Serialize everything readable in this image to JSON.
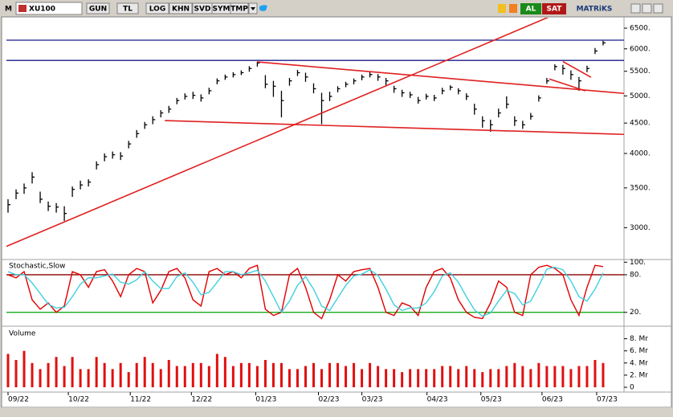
{
  "toolbar": {
    "mode": "M",
    "symbol": "XU100",
    "buttons": [
      "GUN",
      "TL",
      "LOG",
      "KHN",
      "SVD",
      "SYM",
      "TMP"
    ],
    "buy": "AL",
    "sell": "SAT",
    "brand": "MATRiKS"
  },
  "chart_data": [
    {
      "type": "ohlc",
      "log": true,
      "grid": false,
      "color": "#000000",
      "xlim": [
        -0.2,
        76.6
      ],
      "ylim": [
        2660,
        6770
      ],
      "yticks": [
        {
          "value": 6500,
          "label": "6500."
        },
        {
          "value": 6000,
          "label": "6000."
        },
        {
          "value": 5500,
          "label": "5500."
        },
        {
          "value": 5000,
          "label": "5000."
        },
        {
          "value": 4500,
          "label": "4500."
        },
        {
          "value": 4000,
          "label": "4000."
        },
        {
          "value": 3500,
          "label": "3500."
        },
        {
          "value": 3000,
          "label": "3000."
        }
      ],
      "high": [
        3350,
        3480,
        3560,
        3720,
        3450,
        3320,
        3300,
        3260,
        3520,
        3600,
        3620,
        3880,
        4000,
        4030,
        4020,
        4200,
        4380,
        4520,
        4620,
        4730,
        4810,
        4960,
        5050,
        5080,
        5030,
        5160,
        5350,
        5430,
        5480,
        5520,
        5610,
        5710,
        5420,
        5300,
        5100,
        5360,
        5530,
        5470,
        5250,
        5060,
        5080,
        5190,
        5280,
        5350,
        5430,
        5480,
        5440,
        5360,
        5200,
        5120,
        5080,
        4980,
        5040,
        5020,
        5160,
        5210,
        5150,
        5050,
        4850,
        4620,
        4560,
        4760,
        4990,
        4620,
        4540,
        4680,
        5010,
        5360,
        5650,
        5640,
        5520,
        5380,
        5620,
        6020,
        6190
      ],
      "low": [
        3180,
        3350,
        3420,
        3560,
        3300,
        3200,
        3180,
        3080,
        3380,
        3480,
        3520,
        3760,
        3880,
        3920,
        3900,
        4080,
        4250,
        4400,
        4480,
        4600,
        4680,
        4840,
        4930,
        4940,
        4890,
        5030,
        5230,
        5320,
        5370,
        5420,
        5490,
        5600,
        5150,
        4980,
        4600,
        5200,
        5400,
        5280,
        5050,
        4480,
        4900,
        5070,
        5170,
        5230,
        5310,
        5370,
        5300,
        5210,
        5060,
        4980,
        4960,
        4850,
        4930,
        4900,
        5030,
        5110,
        5030,
        4920,
        4650,
        4420,
        4350,
        4600,
        4760,
        4450,
        4400,
        4560,
        4890,
        5240,
        5520,
        5430,
        5320,
        5100,
        5480,
        5880,
        6080
      ],
      "close": [
        3280,
        3430,
        3500,
        3650,
        3350,
        3260,
        3250,
        3170,
        3480,
        3540,
        3580,
        3830,
        3950,
        3980,
        3960,
        4150,
        4320,
        4470,
        4560,
        4680,
        4750,
        4910,
        4990,
        5010,
        4960,
        5100,
        5300,
        5380,
        5430,
        5470,
        5560,
        5680,
        5230,
        5190,
        4910,
        5300,
        5470,
        5380,
        5140,
        4910,
        4990,
        5140,
        5230,
        5300,
        5380,
        5430,
        5380,
        5300,
        5140,
        5060,
        5020,
        4910,
        4990,
        4960,
        5100,
        5170,
        5100,
        4990,
        4750,
        4540,
        4470,
        4680,
        4840,
        4540,
        4470,
        4620,
        4960,
        5300,
        5600,
        5560,
        5430,
        5300,
        5560,
        5950,
        6140
      ],
      "trendlines": [
        {
          "x": [
            -0.2,
            68
          ],
          "y": [
            2790,
            6855
          ],
          "color": "#e02020"
        },
        {
          "x": [
            31,
            76.6
          ],
          "y": [
            5703,
            5048
          ],
          "color": "#e02020"
        },
        {
          "x": [
            19.5,
            76.6
          ],
          "y": [
            4543,
            4307
          ],
          "color": "#e02020"
        },
        {
          "x": [
            69,
            72.5
          ],
          "y": [
            5713,
            5373
          ],
          "color": "#e02020"
        },
        {
          "x": [
            67.3,
            71.8
          ],
          "y": [
            5339,
            5098
          ],
          "color": "#e02020"
        }
      ],
      "levels": [
        {
          "value": 6205,
          "color": "#1a1a8c"
        },
        {
          "value": 5737,
          "color": "#1a1a8c"
        }
      ]
    },
    {
      "type": "line",
      "title": "Stochastic,Slow",
      "xlim": [
        -0.2,
        76.6
      ],
      "ylim": [
        3,
        103
      ],
      "yticks": [
        {
          "value": 100,
          "label": "100."
        },
        {
          "value": 80,
          "label": "80."
        },
        {
          "value": 20,
          "label": "20."
        }
      ],
      "levels": [
        {
          "value": 80,
          "color": "#8b0000"
        },
        {
          "value": 20,
          "color": "#00a000"
        }
      ],
      "series": [
        {
          "color": "#e00000",
          "values": [
            80,
            75,
            85,
            40,
            25,
            35,
            20,
            30,
            85,
            80,
            60,
            85,
            88,
            70,
            45,
            80,
            90,
            85,
            35,
            55,
            85,
            90,
            75,
            40,
            30,
            85,
            90,
            80,
            85,
            75,
            90,
            95,
            25,
            15,
            20,
            80,
            90,
            60,
            20,
            10,
            40,
            80,
            70,
            85,
            88,
            90,
            60,
            20,
            15,
            35,
            30,
            15,
            60,
            85,
            90,
            75,
            40,
            20,
            12,
            10,
            35,
            70,
            60,
            20,
            15,
            80,
            92,
            95,
            90,
            80,
            40,
            15,
            60,
            95,
            93
          ]
        },
        {
          "color": "#40d0e0",
          "values": [
            85,
            80,
            80,
            67,
            50,
            33,
            27,
            28,
            45,
            65,
            75,
            75,
            78,
            81,
            68,
            65,
            72,
            85,
            70,
            58,
            58,
            77,
            83,
            68,
            48,
            52,
            68,
            85,
            85,
            80,
            83,
            87,
            70,
            45,
            20,
            38,
            63,
            77,
            57,
            30,
            23,
            43,
            63,
            78,
            81,
            88,
            79,
            57,
            32,
            23,
            27,
            27,
            35,
            53,
            78,
            83,
            68,
            45,
            24,
            14,
            19,
            38,
            55,
            50,
            32,
            38,
            62,
            89,
            92,
            88,
            70,
            45,
            38,
            57,
            83
          ]
        }
      ]
    },
    {
      "type": "bar",
      "title": "Volume",
      "color": "#e01010",
      "xlim": [
        -0.2,
        76.6
      ],
      "ylim": [
        0,
        9.8
      ],
      "yticks": [
        {
          "value": 8,
          "label": "8. Mr"
        },
        {
          "value": 6,
          "label": "6. Mr"
        },
        {
          "value": 4,
          "label": "4. Mr"
        },
        {
          "value": 2,
          "label": "2. Mr"
        },
        0
      ],
      "xticks": [
        {
          "value": 0,
          "label": "09/22"
        },
        {
          "value": 7.5,
          "label": "10/22"
        },
        {
          "value": 15.2,
          "label": "11/22"
        },
        {
          "value": 22.8,
          "label": "12/22"
        },
        {
          "value": 30.8,
          "label": "01/23"
        },
        {
          "value": 38.6,
          "label": "02/23"
        },
        {
          "value": 44,
          "label": "03/23"
        },
        {
          "value": 52.1,
          "label": "04/23"
        },
        {
          "value": 58.8,
          "label": "05/23"
        },
        {
          "value": 66.4,
          "label": "06/23"
        },
        {
          "value": 73.2,
          "label": "07/23"
        }
      ],
      "values": [
        5.5,
        4.5,
        6,
        4,
        3,
        4,
        5,
        3.5,
        5,
        3,
        3,
        5,
        4,
        3,
        4,
        2.5,
        4,
        5,
        4,
        3,
        4.5,
        3.5,
        3.5,
        4,
        4,
        3.5,
        5.5,
        5,
        3.5,
        4,
        4,
        3.5,
        4.5,
        4,
        4,
        3,
        3,
        3.5,
        4,
        3,
        4,
        4,
        3.5,
        4,
        3,
        4,
        3.5,
        3,
        3,
        2.5,
        3,
        3,
        3,
        3,
        3.5,
        3.5,
        3,
        3.5,
        3,
        2.5,
        3,
        3,
        3.5,
        4,
        3.5,
        3,
        4,
        3.5,
        3.5,
        3.5,
        3,
        3.5,
        3.5,
        4.5,
        4
      ]
    }
  ]
}
